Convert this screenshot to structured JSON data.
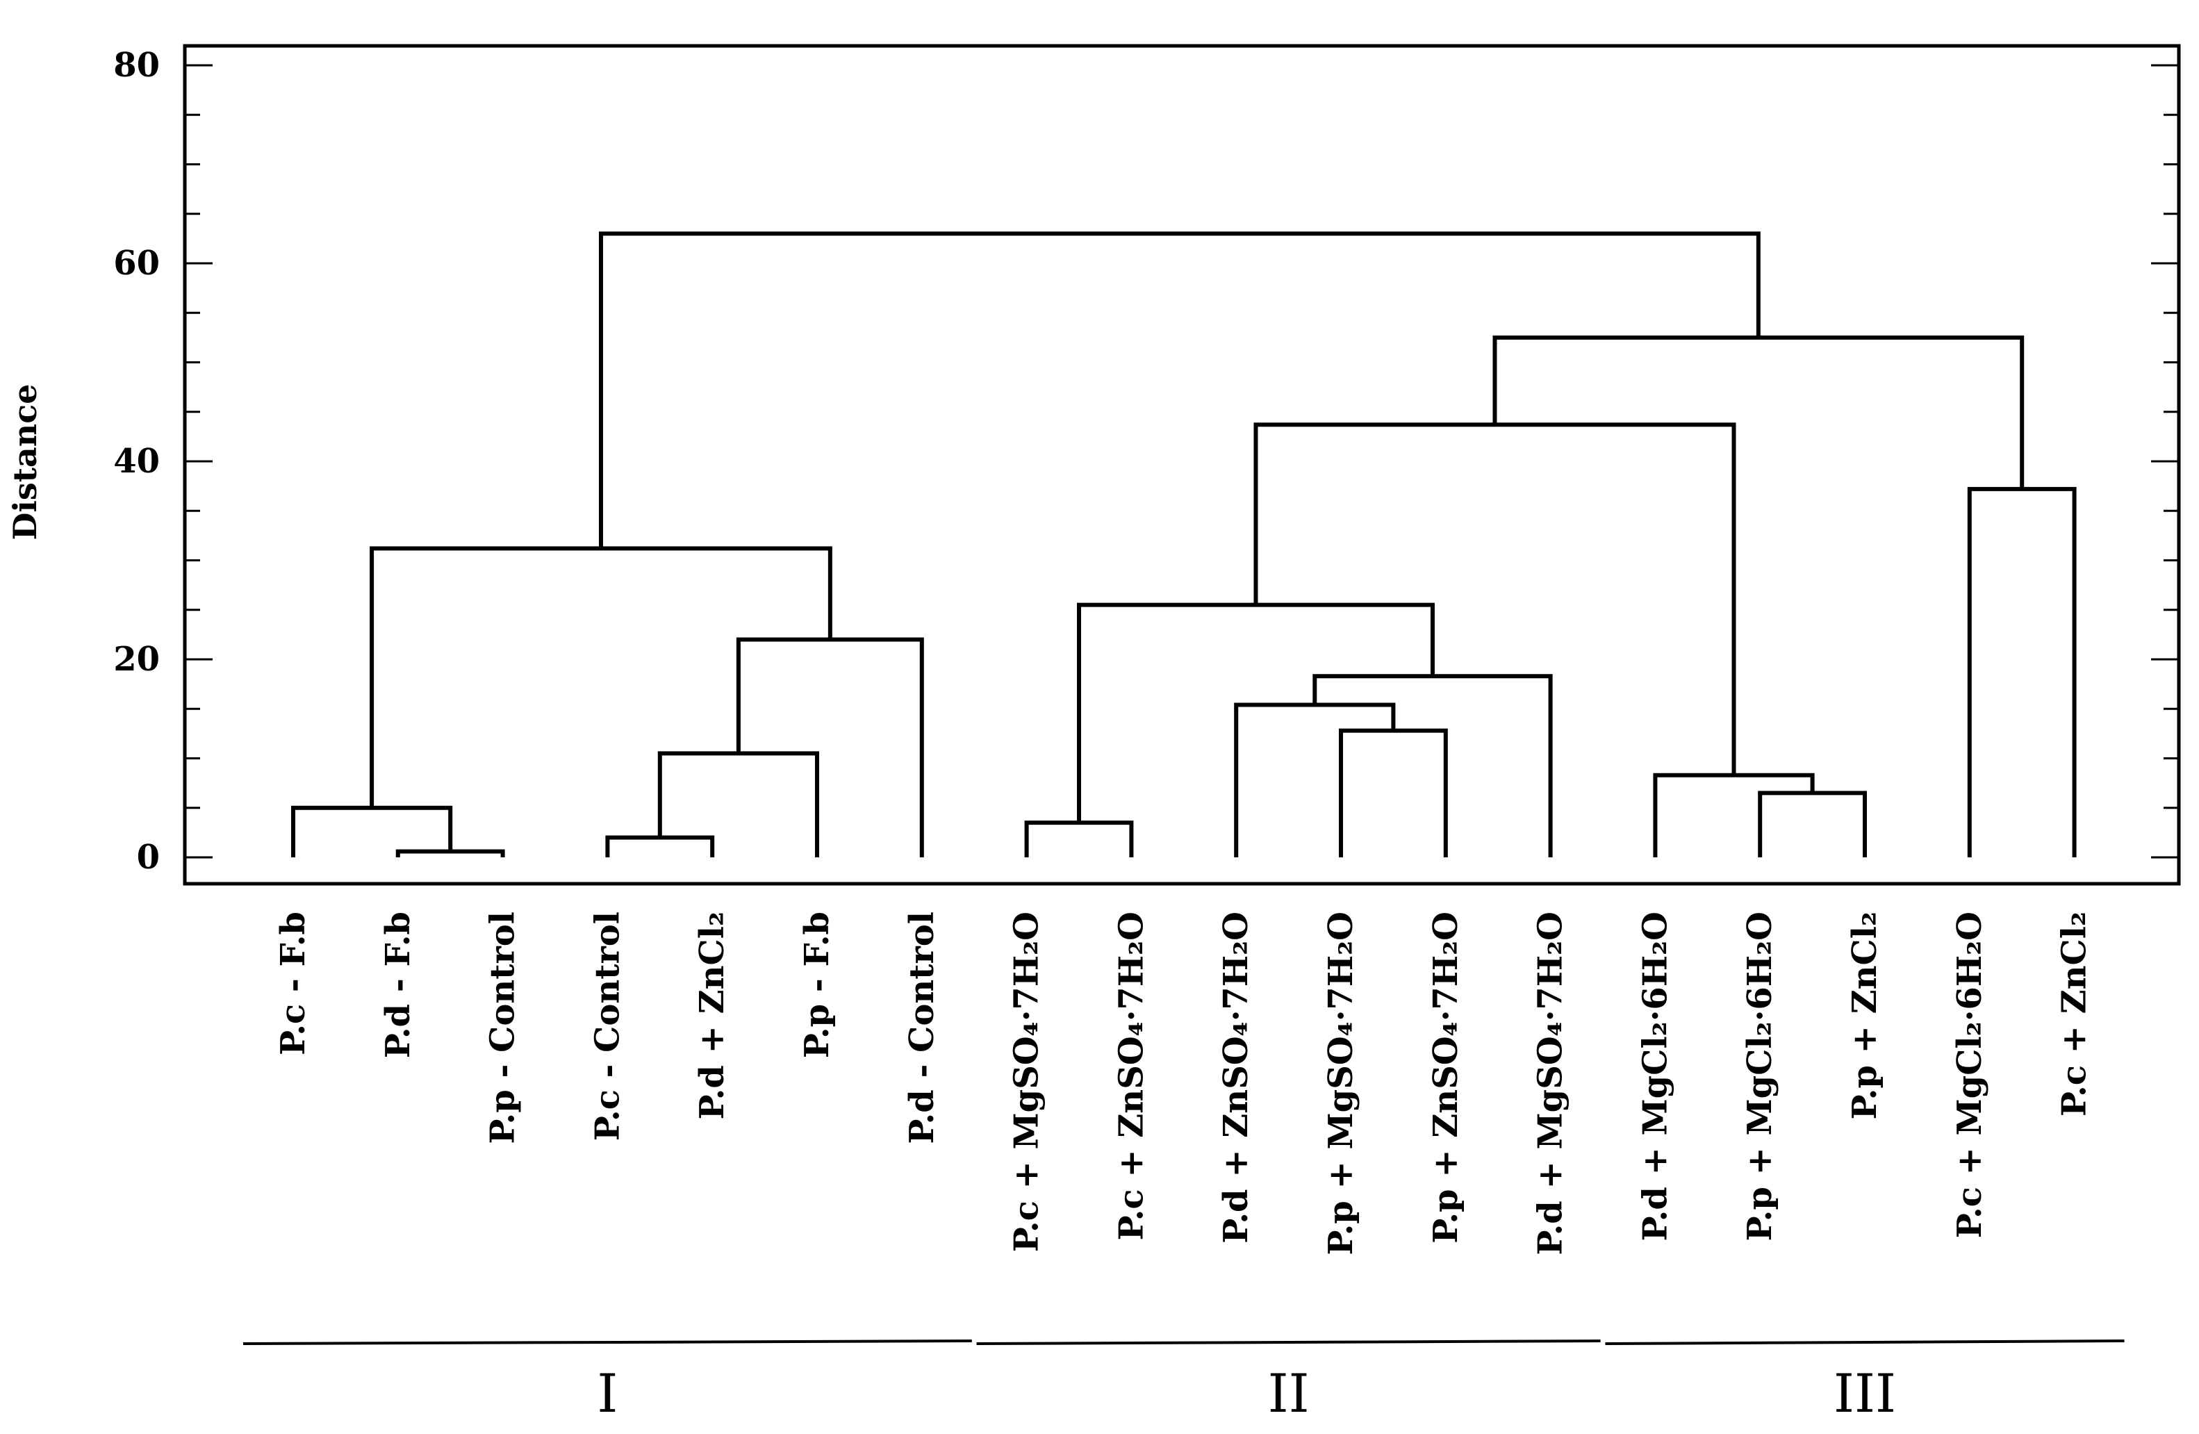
{
  "chart_data": {
    "type": "dendrogram",
    "ylabel": "Distance",
    "ylim": [
      -3,
      82
    ],
    "yticks": [
      0,
      20,
      40,
      60,
      80
    ],
    "leaves": [
      "P.c - F.b",
      "P.d - F.b",
      "P.p  - Control",
      "P.c - Control",
      "P.d + ZnCl₂",
      "P.p - F.b",
      "P.d - Control",
      "P.c + MgSO₄·7H₂O",
      "P.c + ZnSO₄·7H₂O",
      "P.d + ZnSO₄·7H₂O",
      "P.p + MgSO₄·7H₂O",
      "P.p + ZnSO₄·7H₂O",
      "P.d + MgSO₄·7H₂O",
      "P.d + MgCl₂·6H₂O",
      "P.p + MgCl₂·6H₂O",
      "P.p + ZnCl₂",
      "P.c + MgCl₂·6H₂O",
      "P.c + ZnCl₂"
    ],
    "merges": [
      {
        "left": "L1",
        "right": "L2",
        "height": 0.6
      },
      {
        "left": "L0",
        "right": "M0",
        "height": 5.0
      },
      {
        "left": "L3",
        "right": "L4",
        "height": 2.0
      },
      {
        "left": "M2",
        "right": "L5",
        "height": 10.5
      },
      {
        "left": "M3",
        "right": "L6",
        "height": 22.0
      },
      {
        "left": "M1",
        "right": "M4",
        "height": 31.2
      },
      {
        "left": "L7",
        "right": "L8",
        "height": 3.5
      },
      {
        "left": "L10",
        "right": "L11",
        "height": 12.8
      },
      {
        "left": "L9",
        "right": "M7",
        "height": 15.4
      },
      {
        "left": "M8",
        "right": "L12",
        "height": 18.3
      },
      {
        "left": "M6",
        "right": "M9",
        "height": 25.5
      },
      {
        "left": "L14",
        "right": "L15",
        "height": 6.5
      },
      {
        "left": "L13",
        "right": "M11",
        "height": 8.3
      },
      {
        "left": "M10",
        "right": "M12",
        "height": 43.7
      },
      {
        "left": "L16",
        "right": "L17",
        "height": 37.2
      },
      {
        "left": "M13",
        "right": "M14",
        "height": 52.5
      },
      {
        "left": "M5",
        "right": "M15",
        "height": 63.0
      }
    ],
    "groups": [
      {
        "label": "I",
        "from": 0,
        "to": 6
      },
      {
        "label": "II",
        "from": 7,
        "to": 12
      },
      {
        "label": "III",
        "from": 13,
        "to": 17
      }
    ]
  }
}
